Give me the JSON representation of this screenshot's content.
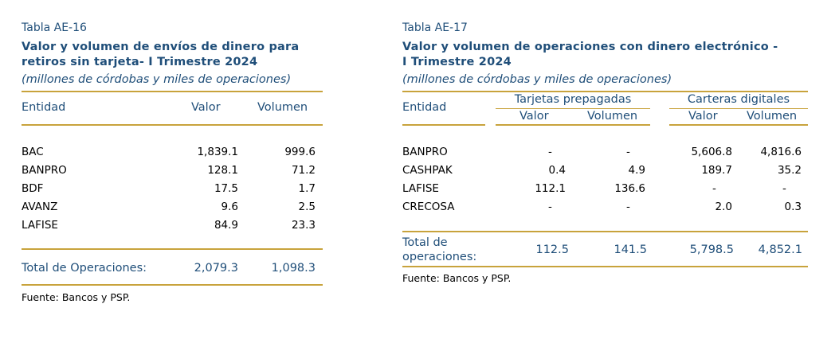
{
  "ae16": {
    "label": "Tabla AE-16",
    "title_line1": "Valor y volumen de envíos de dinero para",
    "title_line2": "retiros sin tarjeta- I Trimestre 2024",
    "subtitle": "(millones de córdobas y miles de operaciones)",
    "headers": {
      "entity": "Entidad",
      "value": "Valor",
      "volume": "Volumen"
    },
    "rows": [
      {
        "entity": "BAC",
        "value": "1,839.1",
        "volume": "999.6"
      },
      {
        "entity": "BANPRO",
        "value": "128.1",
        "volume": "71.2"
      },
      {
        "entity": "BDF",
        "value": "17.5",
        "volume": "1.7"
      },
      {
        "entity": "AVANZ",
        "value": "9.6",
        "volume": "2.5"
      },
      {
        "entity": "LAFISE",
        "value": "84.9",
        "volume": "23.3"
      }
    ],
    "total": {
      "label": "Total de Operaciones:",
      "value": "2,079.3",
      "volume": "1,098.3"
    },
    "source": "Fuente: Bancos y PSP."
  },
  "ae17": {
    "label": "Tabla AE-17",
    "title_line1": "Valor y volumen de operaciones con dinero electrónico -",
    "title_line2": "I Trimestre 2024",
    "subtitle": "(millones de córdobas y miles de operaciones)",
    "headers": {
      "entity": "Entidad",
      "group1": "Tarjetas prepagadas",
      "group2": "Carteras digitales",
      "value": "Valor",
      "volume": "Volumen"
    },
    "rows": [
      {
        "entity": "BANPRO",
        "tp_value": "-",
        "tp_volume": "-",
        "cd_value": "5,606.8",
        "cd_volume": "4,816.6"
      },
      {
        "entity": "CASHPAK",
        "tp_value": "0.4",
        "tp_volume": "4.9",
        "cd_value": "189.7",
        "cd_volume": "35.2"
      },
      {
        "entity": "LAFISE",
        "tp_value": "112.1",
        "tp_volume": "136.6",
        "cd_value": "-",
        "cd_volume": "-"
      },
      {
        "entity": "CRECOSA",
        "tp_value": "-",
        "tp_volume": "-",
        "cd_value": "2.0",
        "cd_volume": "0.3"
      }
    ],
    "total": {
      "label_line1": "Total de",
      "label_line2": "operaciones:",
      "tp_value": "112.5",
      "tp_volume": "141.5",
      "cd_value": "5,798.5",
      "cd_volume": "4,852.1"
    },
    "source": "Fuente: Bancos y PSP."
  },
  "colors": {
    "title_blue": "#1f4e79",
    "rule_gold": "#c8a33c"
  }
}
